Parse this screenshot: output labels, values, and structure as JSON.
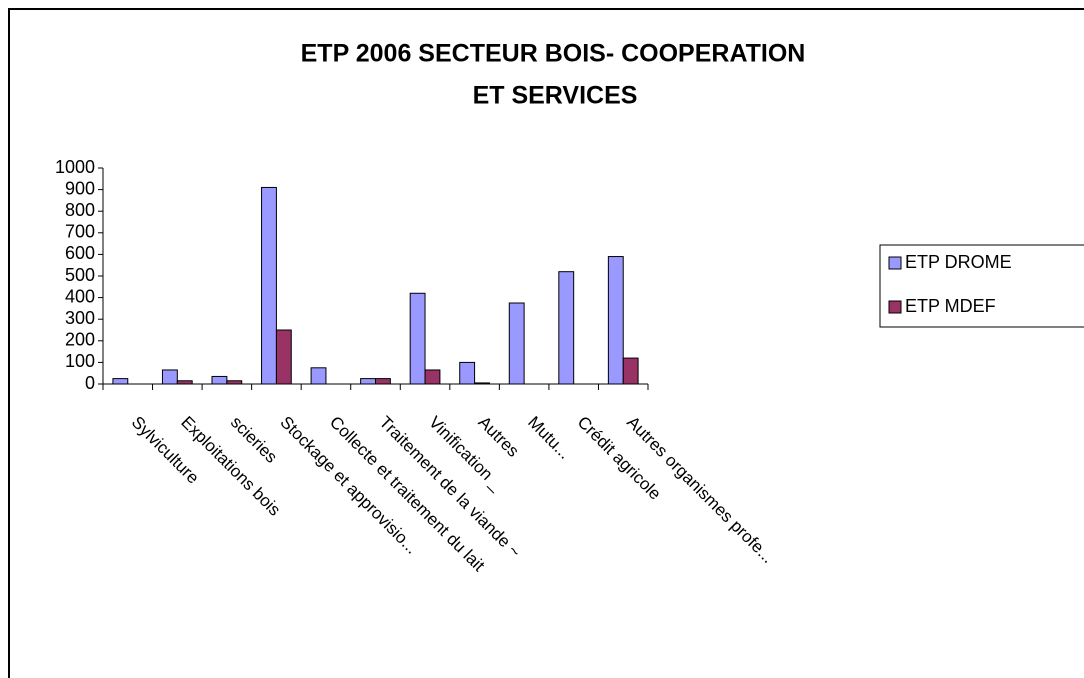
{
  "chart_data": {
    "type": "bar",
    "title": "ETP  2006 SECTEUR BOIS- COOPERATION",
    "subtitle": "ET SERVICES",
    "categories": [
      "Sylviculture",
      "Exploitations bois",
      "scieries",
      "Stockage et approvisio...",
      "Collecte et traitement du lait",
      "Traitement de la viande ~",
      "Vinification _",
      "Autres",
      "Mutu...",
      "Crédit agricole",
      "Autres organismes profe..."
    ],
    "series": [
      {
        "name": "ETP DROME",
        "color": "#9999ff",
        "values": [
          25,
          65,
          35,
          910,
          75,
          25,
          420,
          100,
          375,
          520,
          590
        ]
      },
      {
        "name": "ETP MDEF",
        "color": "#993366",
        "values": [
          0,
          15,
          15,
          250,
          0,
          25,
          65,
          5,
          0,
          0,
          120
        ]
      }
    ],
    "ylim": [
      0,
      1000
    ],
    "yticks": [
      0,
      100,
      200,
      300,
      400,
      500,
      600,
      700,
      800,
      900,
      1000
    ],
    "grid": false,
    "legend": "right"
  }
}
